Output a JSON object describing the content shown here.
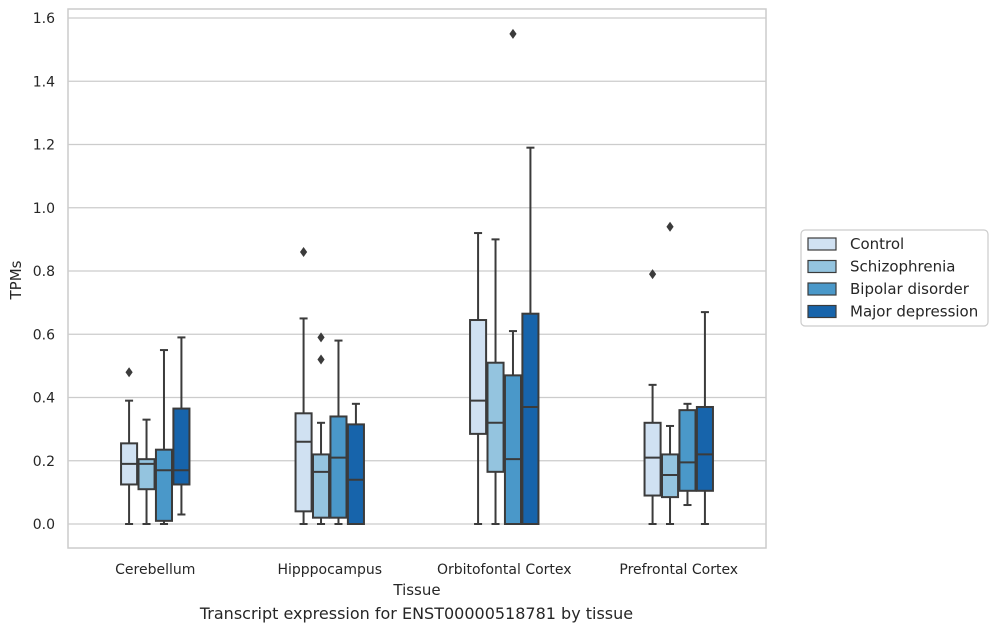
{
  "caption": "Transcript expression for ENST00000518781 by tissue",
  "chart_data": {
    "type": "box",
    "xlabel": "Tissue",
    "ylabel": "TPMs",
    "ylim": [
      -0.075,
      1.63
    ],
    "yticks": [
      0.0,
      0.2,
      0.4,
      0.6,
      0.8,
      1.0,
      1.2,
      1.4,
      1.6
    ],
    "ytick_labels": [
      "0.0",
      "0.2",
      "0.4",
      "0.6",
      "0.8",
      "1.0",
      "1.2",
      "1.4",
      "1.6"
    ],
    "grid": "horizontal",
    "legend_position": "right",
    "categories": [
      "Cerebellum",
      "Hipppocampus",
      "Orbitofontal Cortex",
      "Prefrontal Cortex"
    ],
    "series": [
      {
        "name": "Control",
        "color": "#d0e1f2",
        "boxes": [
          {
            "whislo": 0.0,
            "q1": 0.125,
            "med": 0.19,
            "q3": 0.255,
            "whishi": 0.39,
            "fliers": [
              0.48
            ]
          },
          {
            "whislo": 0.0,
            "q1": 0.04,
            "med": 0.26,
            "q3": 0.35,
            "whishi": 0.65,
            "fliers": [
              0.86
            ]
          },
          {
            "whislo": 0.0,
            "q1": 0.285,
            "med": 0.39,
            "q3": 0.645,
            "whishi": 0.92,
            "fliers": []
          },
          {
            "whislo": 0.0,
            "q1": 0.09,
            "med": 0.21,
            "q3": 0.32,
            "whishi": 0.44,
            "fliers": [
              0.79
            ]
          }
        ]
      },
      {
        "name": "Schizophrenia",
        "color": "#94c4df",
        "boxes": [
          {
            "whislo": 0.0,
            "q1": 0.11,
            "med": 0.19,
            "q3": 0.205,
            "whishi": 0.33,
            "fliers": []
          },
          {
            "whislo": 0.0,
            "q1": 0.02,
            "med": 0.165,
            "q3": 0.22,
            "whishi": 0.32,
            "fliers": [
              0.52,
              0.59
            ]
          },
          {
            "whislo": 0.0,
            "q1": 0.165,
            "med": 0.32,
            "q3": 0.51,
            "whishi": 0.9,
            "fliers": []
          },
          {
            "whislo": 0.0,
            "q1": 0.085,
            "med": 0.155,
            "q3": 0.22,
            "whishi": 0.31,
            "fliers": [
              0.94
            ]
          }
        ]
      },
      {
        "name": "Bipolar disorder",
        "color": "#4a98c9",
        "boxes": [
          {
            "whislo": 0.0,
            "q1": 0.01,
            "med": 0.17,
            "q3": 0.235,
            "whishi": 0.55,
            "fliers": []
          },
          {
            "whislo": 0.0,
            "q1": 0.02,
            "med": 0.21,
            "q3": 0.34,
            "whishi": 0.58,
            "fliers": []
          },
          {
            "whislo": 0.0,
            "q1": 0.0,
            "med": 0.205,
            "q3": 0.47,
            "whishi": 0.61,
            "fliers": [
              1.55
            ]
          },
          {
            "whislo": 0.06,
            "q1": 0.105,
            "med": 0.195,
            "q3": 0.36,
            "whishi": 0.38,
            "fliers": []
          }
        ]
      },
      {
        "name": "Major depression",
        "color": "#1764ab",
        "boxes": [
          {
            "whislo": 0.03,
            "q1": 0.125,
            "med": 0.17,
            "q3": 0.365,
            "whishi": 0.59,
            "fliers": []
          },
          {
            "whislo": 0.0,
            "q1": 0.0,
            "med": 0.14,
            "q3": 0.315,
            "whishi": 0.38,
            "fliers": []
          },
          {
            "whislo": 0.0,
            "q1": 0.0,
            "med": 0.37,
            "q3": 0.665,
            "whishi": 1.19,
            "fliers": []
          },
          {
            "whislo": 0.0,
            "q1": 0.105,
            "med": 0.22,
            "q3": 0.37,
            "whishi": 0.67,
            "fliers": []
          }
        ]
      }
    ]
  }
}
